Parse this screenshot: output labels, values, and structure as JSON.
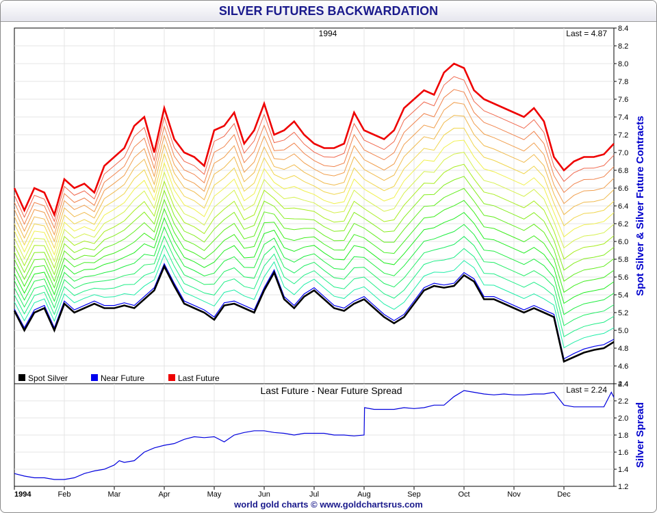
{
  "title": "SILVER FUTURES BACKWARDATION",
  "footer": "world gold charts © www.goldchartsrus.com",
  "colors": {
    "spot": "#000000",
    "near": "#0000ee",
    "last": "#ee0000",
    "axis_title": "#0000cc",
    "spread": "#0000dd"
  },
  "chart_data": [
    {
      "type": "line",
      "title": "1994",
      "last_label": "Last = 4.87",
      "ylabel": "Spot Silver & Silver Future Contracts",
      "ylim": [
        4.4,
        8.4
      ],
      "yticks": [
        "4.4",
        "4.6",
        "4.8",
        "5.0",
        "5.2",
        "5.4",
        "5.6",
        "5.8",
        "6.0",
        "6.2",
        "6.4",
        "6.6",
        "6.8",
        "7.0",
        "7.2",
        "7.4",
        "7.6",
        "7.8",
        "8.0",
        "8.2",
        "8.4"
      ],
      "xlim": [
        0,
        12
      ],
      "xtick_labels": [
        "1994",
        "Feb",
        "Mar",
        "Apr",
        "May",
        "Jun",
        "Jul",
        "Aug",
        "Sep",
        "Oct",
        "Nov",
        "Dec"
      ],
      "legend": [
        "Spot Silver",
        "Near Future",
        "Last Future"
      ],
      "series": [
        {
          "name": "Spot Silver",
          "x": [
            0,
            0.2,
            0.4,
            0.6,
            0.8,
            1.0,
            1.2,
            1.4,
            1.6,
            1.8,
            2.0,
            2.2,
            2.4,
            2.6,
            2.8,
            3.0,
            3.2,
            3.4,
            3.6,
            3.8,
            4.0,
            4.2,
            4.4,
            4.6,
            4.8,
            5.0,
            5.2,
            5.4,
            5.6,
            5.8,
            6.0,
            6.2,
            6.4,
            6.6,
            6.8,
            7.0,
            7.2,
            7.4,
            7.6,
            7.8,
            8.0,
            8.2,
            8.4,
            8.6,
            8.8,
            9.0,
            9.2,
            9.4,
            9.6,
            9.8,
            10.0,
            10.2,
            10.4,
            10.6,
            10.8,
            11.0,
            11.2,
            11.4,
            11.6,
            11.8,
            12.0
          ],
          "values": [
            5.22,
            5.0,
            5.2,
            5.25,
            5.0,
            5.3,
            5.2,
            5.25,
            5.3,
            5.25,
            5.25,
            5.28,
            5.25,
            5.35,
            5.45,
            5.72,
            5.5,
            5.3,
            5.25,
            5.2,
            5.12,
            5.28,
            5.3,
            5.25,
            5.2,
            5.45,
            5.65,
            5.35,
            5.25,
            5.38,
            5.45,
            5.35,
            5.25,
            5.22,
            5.3,
            5.35,
            5.25,
            5.15,
            5.08,
            5.15,
            5.3,
            5.45,
            5.5,
            5.48,
            5.5,
            5.62,
            5.55,
            5.35,
            5.35,
            5.3,
            5.25,
            5.2,
            5.25,
            5.2,
            5.15,
            4.65,
            4.7,
            4.75,
            4.78,
            4.8,
            4.87
          ]
        },
        {
          "name": "Near Future",
          "x": [
            0,
            0.2,
            0.4,
            0.6,
            0.8,
            1.0,
            1.2,
            1.4,
            1.6,
            1.8,
            2.0,
            2.2,
            2.4,
            2.6,
            2.8,
            3.0,
            3.2,
            3.4,
            3.6,
            3.8,
            4.0,
            4.2,
            4.4,
            4.6,
            4.8,
            5.0,
            5.2,
            5.4,
            5.6,
            5.8,
            6.0,
            6.2,
            6.4,
            6.6,
            6.8,
            7.0,
            7.2,
            7.4,
            7.6,
            7.8,
            8.0,
            8.2,
            8.4,
            8.6,
            8.8,
            9.0,
            9.2,
            9.4,
            9.6,
            9.8,
            10.0,
            10.2,
            10.4,
            10.6,
            10.8,
            11.0,
            11.2,
            11.4,
            11.6,
            11.8,
            12.0
          ],
          "values": [
            5.24,
            5.03,
            5.23,
            5.28,
            5.03,
            5.33,
            5.23,
            5.28,
            5.33,
            5.28,
            5.28,
            5.31,
            5.28,
            5.38,
            5.48,
            5.75,
            5.53,
            5.33,
            5.28,
            5.23,
            5.15,
            5.31,
            5.33,
            5.28,
            5.23,
            5.48,
            5.68,
            5.38,
            5.28,
            5.41,
            5.48,
            5.38,
            5.28,
            5.25,
            5.33,
            5.38,
            5.28,
            5.18,
            5.11,
            5.18,
            5.33,
            5.48,
            5.53,
            5.51,
            5.53,
            5.65,
            5.58,
            5.38,
            5.38,
            5.33,
            5.28,
            5.23,
            5.28,
            5.23,
            5.18,
            4.68,
            4.74,
            4.79,
            4.82,
            4.84,
            4.9
          ]
        },
        {
          "name": "Last Future",
          "x": [
            0,
            0.2,
            0.4,
            0.6,
            0.8,
            1.0,
            1.2,
            1.4,
            1.6,
            1.8,
            2.0,
            2.2,
            2.4,
            2.6,
            2.8,
            3.0,
            3.2,
            3.4,
            3.6,
            3.8,
            4.0,
            4.2,
            4.4,
            4.6,
            4.8,
            5.0,
            5.2,
            5.4,
            5.6,
            5.8,
            6.0,
            6.2,
            6.4,
            6.6,
            6.8,
            7.0,
            7.2,
            7.4,
            7.6,
            7.8,
            8.0,
            8.2,
            8.4,
            8.6,
            8.8,
            9.0,
            9.2,
            9.4,
            9.6,
            9.8,
            10.0,
            10.2,
            10.4,
            10.6,
            10.8,
            11.0,
            11.2,
            11.4,
            11.6,
            11.8,
            12.0
          ],
          "values": [
            6.6,
            6.35,
            6.6,
            6.55,
            6.3,
            6.7,
            6.6,
            6.65,
            6.55,
            6.85,
            6.95,
            7.05,
            7.3,
            7.4,
            7.0,
            7.5,
            7.15,
            7.0,
            6.95,
            6.85,
            7.25,
            7.3,
            7.45,
            7.1,
            7.25,
            7.55,
            7.2,
            7.25,
            7.35,
            7.2,
            7.1,
            7.05,
            7.05,
            7.1,
            7.45,
            7.25,
            7.2,
            7.15,
            7.25,
            7.5,
            7.6,
            7.7,
            7.65,
            7.9,
            8.0,
            7.95,
            7.7,
            7.6,
            7.55,
            7.5,
            7.45,
            7.4,
            7.5,
            7.35,
            6.95,
            6.8,
            6.9,
            6.95,
            6.95,
            6.98,
            7.1
          ]
        }
      ],
      "intermediate_contracts": 16
    },
    {
      "type": "line",
      "title": "Last Future - Near Future Spread",
      "last_label": "Last = 2.24",
      "ylabel": "Silver Spread",
      "ylim": [
        1.2,
        2.4
      ],
      "yticks": [
        "1.2",
        "1.4",
        "1.6",
        "1.8",
        "2.0",
        "2.2",
        "2.4"
      ],
      "xlim": [
        0,
        12
      ],
      "series": [
        {
          "name": "Spread",
          "x": [
            0,
            0.2,
            0.4,
            0.6,
            0.8,
            1.0,
            1.2,
            1.4,
            1.6,
            1.8,
            2.0,
            2.1,
            2.2,
            2.4,
            2.6,
            2.8,
            3.0,
            3.2,
            3.4,
            3.6,
            3.8,
            4.0,
            4.2,
            4.4,
            4.6,
            4.8,
            5.0,
            5.2,
            5.4,
            5.6,
            5.8,
            6.0,
            6.2,
            6.4,
            6.6,
            6.8,
            7.0,
            7.01,
            7.2,
            7.4,
            7.6,
            7.8,
            8.0,
            8.2,
            8.4,
            8.6,
            8.8,
            9.0,
            9.2,
            9.4,
            9.6,
            9.8,
            10.0,
            10.2,
            10.4,
            10.6,
            10.8,
            11.0,
            11.2,
            11.4,
            11.6,
            11.8,
            11.95,
            12.0
          ],
          "values": [
            1.35,
            1.32,
            1.3,
            1.3,
            1.28,
            1.28,
            1.3,
            1.35,
            1.38,
            1.4,
            1.45,
            1.5,
            1.48,
            1.5,
            1.6,
            1.65,
            1.68,
            1.7,
            1.75,
            1.78,
            1.77,
            1.78,
            1.72,
            1.8,
            1.83,
            1.85,
            1.85,
            1.83,
            1.82,
            1.8,
            1.82,
            1.82,
            1.82,
            1.8,
            1.8,
            1.79,
            1.8,
            2.12,
            2.1,
            2.1,
            2.1,
            2.12,
            2.11,
            2.12,
            2.15,
            2.15,
            2.25,
            2.32,
            2.3,
            2.28,
            2.27,
            2.28,
            2.27,
            2.27,
            2.28,
            2.28,
            2.3,
            2.15,
            2.13,
            2.13,
            2.13,
            2.13,
            2.3,
            2.24
          ]
        }
      ]
    }
  ]
}
